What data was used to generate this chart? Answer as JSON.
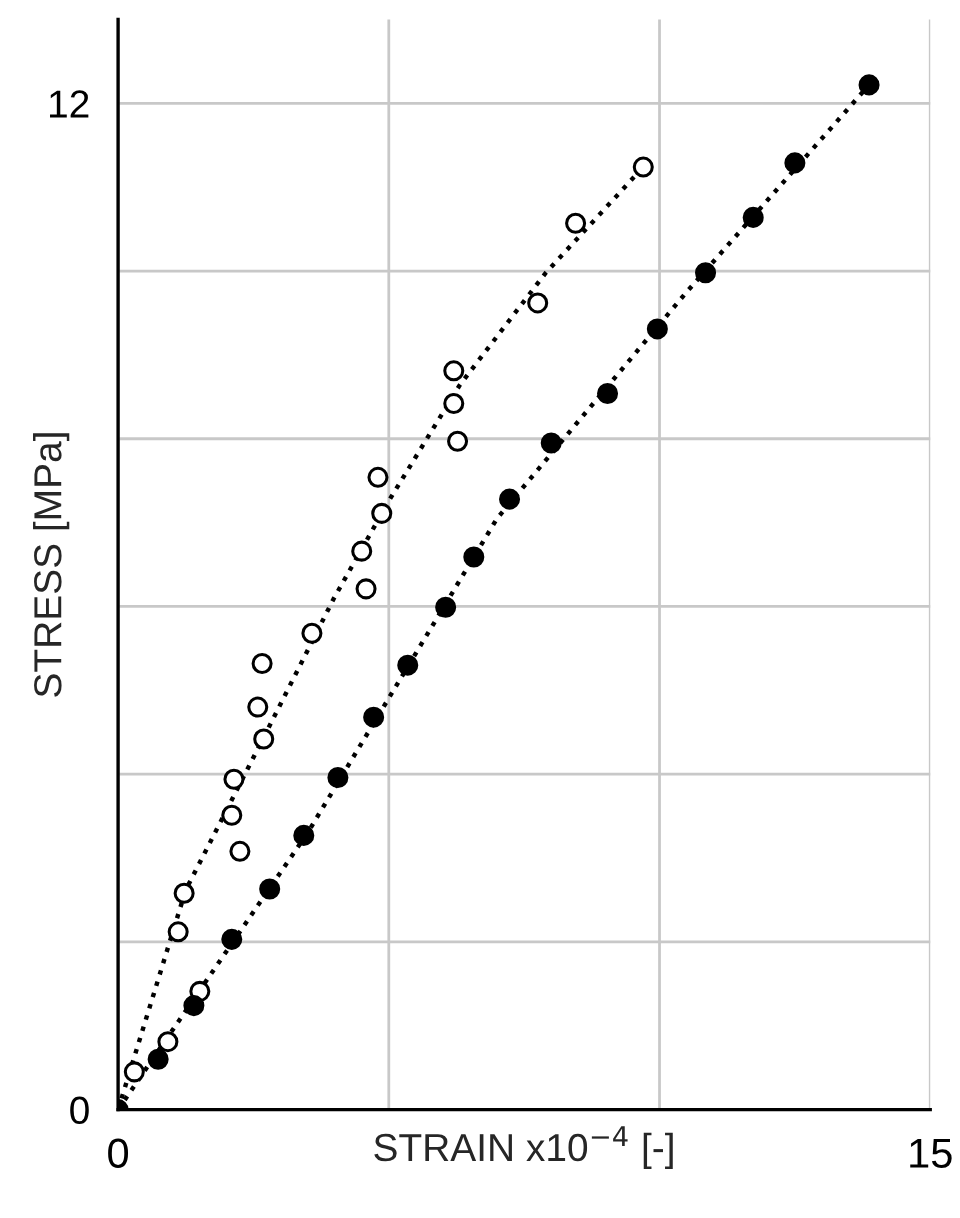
{
  "chart_data": {
    "type": "scatter",
    "xlabel": "STRAIN x10$^{−4}$ [-]",
    "ylabel": "STRESS [MPa]",
    "xlim": [
      0,
      15
    ],
    "ylim": [
      0,
      13
    ],
    "xticks": [
      0,
      {
        "value": 5,
        "label": null
      },
      {
        "value": 10,
        "label": null
      },
      15
    ],
    "yticks": [
      0,
      {
        "value": 2,
        "label": null
      },
      {
        "value": 4,
        "label": null
      },
      {
        "value": 6,
        "label": null
      },
      {
        "value": 8,
        "label": null
      },
      {
        "value": 10,
        "label": null
      },
      12
    ],
    "grid": true,
    "legend": false,
    "series": [
      {
        "marker": "circle",
        "color": "#ffffff",
        "x": [
          0.3,
          0.92,
          1.51,
          1.11,
          1.22,
          2.25,
          2.1,
          2.14,
          2.69,
          2.58,
          2.66,
          3.58,
          4.58,
          4.5,
          4.87,
          4.8,
          6.27,
          6.2,
          6.2,
          7.75,
          8.45,
          9.7
        ],
        "values": [
          0.45,
          0.81,
          1.41,
          2.12,
          2.58,
          3.08,
          3.51,
          3.94,
          4.42,
          4.8,
          5.32,
          5.68,
          6.21,
          6.66,
          7.11,
          7.54,
          7.97,
          8.42,
          8.81,
          9.62,
          10.57,
          11.24
        ]
      },
      {
        "marker": "circle",
        "color": "#000000",
        "x": [
          0,
          0.74,
          1.4,
          2.1,
          2.8,
          3.43,
          4.06,
          4.72,
          5.35,
          6.05,
          6.57,
          7.23,
          8.0,
          9.04,
          9.96,
          10.85,
          11.73,
          12.5,
          13.87
        ],
        "values": [
          0,
          0.6,
          1.24,
          2.03,
          2.63,
          3.27,
          3.96,
          4.68,
          5.3,
          5.99,
          6.59,
          7.28,
          7.95,
          8.54,
          9.31,
          9.98,
          10.64,
          11.29,
          12.22
        ]
      },
      {
        "type": "line",
        "marker": "none",
        "color": "#000000",
        "line_style": "dotted",
        "x": [
          0,
          1.25,
          2.73,
          3.98,
          5.02,
          6.31,
          7.9,
          9.7
        ],
        "values": [
          0,
          2.62,
          4.49,
          6.09,
          7.28,
          8.64,
          9.98,
          11.24
        ]
      },
      {
        "type": "line",
        "marker": "none",
        "color": "#000000",
        "line_style": "dotted",
        "x": [
          0,
          3.5,
          7.0,
          10.5,
          13.87
        ],
        "values": [
          0,
          3.3,
          7.05,
          9.75,
          12.22
        ]
      }
    ]
  }
}
